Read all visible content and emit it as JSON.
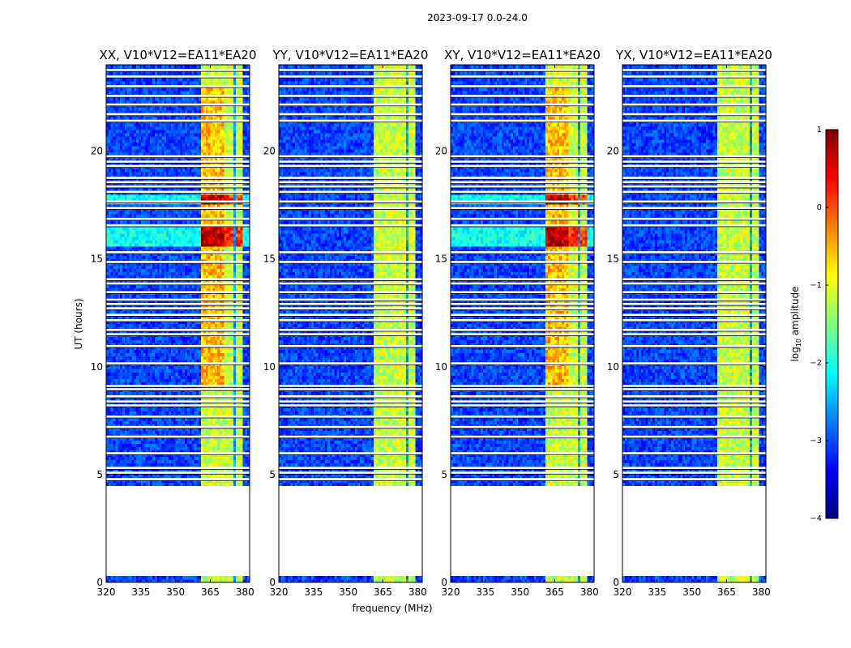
{
  "chart_data": {
    "type": "heatmap",
    "suptitle": "2023-09-17 0.0-24.0",
    "xlabel": "frequency (MHz)",
    "ylabel": "UT (hours)",
    "xlim": [
      320,
      382
    ],
    "ylim": [
      0,
      24
    ],
    "xticks": [
      320,
      335,
      350,
      365,
      380
    ],
    "yticks": [
      0,
      5,
      10,
      15,
      20
    ],
    "panels": [
      {
        "title": "XX, V10*V12=EA11*EA20",
        "hot": true
      },
      {
        "title": "YY, V10*V12=EA11*EA20",
        "hot": false
      },
      {
        "title": "XY, V10*V12=EA11*EA20",
        "hot": true
      },
      {
        "title": "YX, V10*V12=EA11*EA20",
        "hot": false
      }
    ],
    "data_gaps_ut": [
      [
        0.35,
        4.5
      ]
    ],
    "flagged_ut": [
      4.78,
      5.08,
      5.3,
      5.98,
      6.75,
      7.2,
      7.68,
      8.2,
      8.38,
      8.62,
      8.95,
      9.1,
      10.15,
      10.95,
      11.5,
      11.7,
      12.15,
      12.4,
      12.7,
      12.9,
      13.1,
      13.45,
      13.85,
      14.05,
      14.85,
      15.3,
      16.55,
      16.85,
      17.35,
      17.65,
      18.1,
      18.35,
      18.55,
      18.75,
      19.3,
      19.5,
      19.75,
      21.4,
      21.7,
      22.15,
      22.55,
      23.0,
      23.45,
      23.75
    ],
    "bright_band_mhz": [
      361,
      379
    ],
    "bright_channels_mhz": [
      [
        361.5,
        366
      ],
      [
        366.5,
        371
      ],
      [
        371.5,
        375.5
      ],
      [
        376,
        379.5
      ]
    ],
    "colorbar": {
      "label": "log10 amplitude",
      "range": [
        -4,
        1
      ],
      "ticks": [
        "1",
        "0",
        "−1",
        "−2",
        "−3",
        "−4"
      ],
      "colormap": "jet",
      "colors": [
        "#00007f",
        "#0000ff",
        "#007fff",
        "#00ffff",
        "#7fff7f",
        "#ffff00",
        "#ff7f00",
        "#ff0000",
        "#7f0000"
      ]
    }
  },
  "colorbar_label": {
    "log": "log",
    "sub": "10",
    "rest": " amplitude"
  }
}
